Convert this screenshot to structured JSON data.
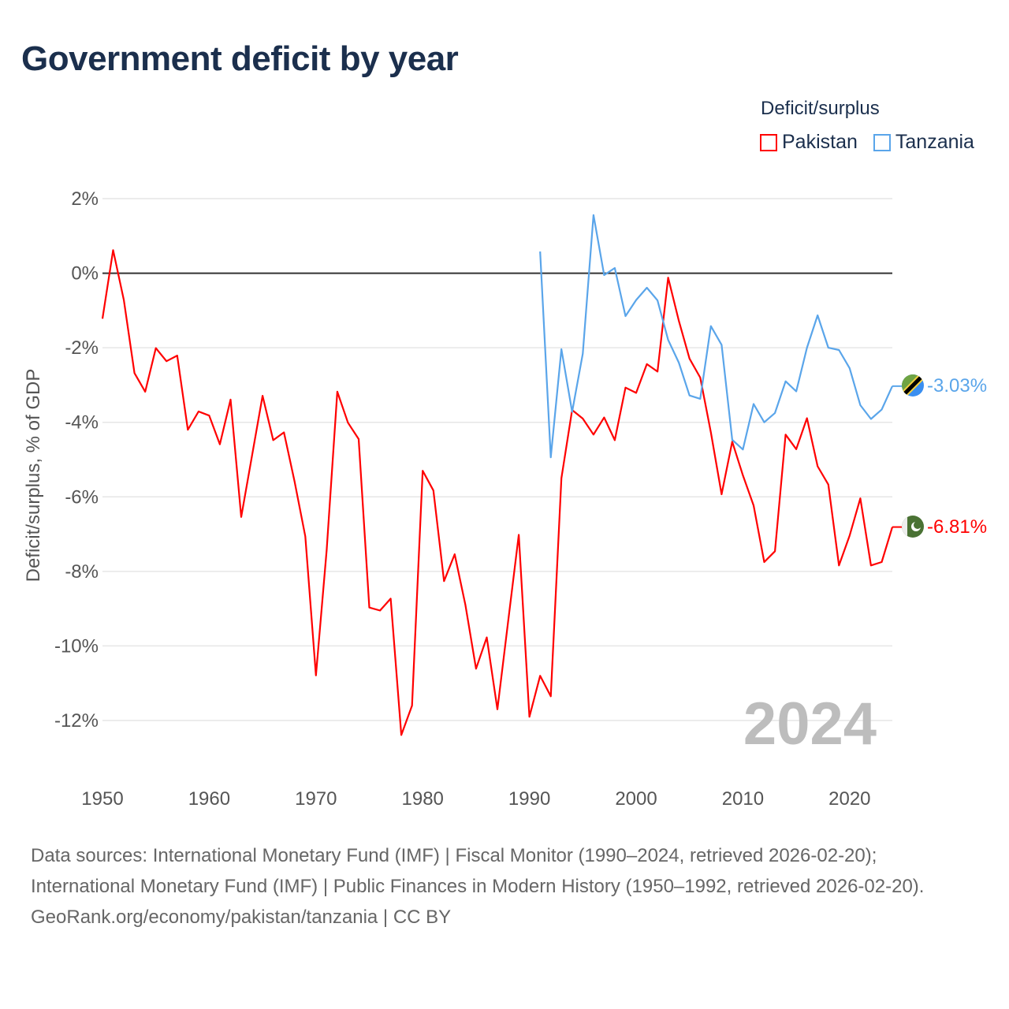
{
  "title": "Government deficit by year",
  "legend": {
    "title": "Deficit/surplus",
    "items": [
      {
        "name": "Pakistan",
        "color": "#ff0000"
      },
      {
        "name": "Tanzania",
        "color": "#5aa5ea"
      }
    ]
  },
  "year_label": "2024",
  "end_labels": {
    "pakistan": "-6.81%",
    "tanzania": "-3.03%"
  },
  "source": {
    "line1": "Data sources: International Monetary Fund (IMF) | Fiscal Monitor (1990–2024, retrieved 2026-02-20); International Monetary Fund (IMF) | Public Finances in Modern History (1950–1992, retrieved 2026-02-20).",
    "line2": "GeoRank.org/economy/pakistan/tanzania | CC BY"
  },
  "chart_data": {
    "type": "line",
    "title": "Government deficit by year",
    "xlabel": "",
    "ylabel": "Deficit/surplus, % of GDP",
    "xlim": [
      1950,
      2024
    ],
    "ylim": [
      -12,
      2
    ],
    "xticks": [
      1950,
      1960,
      1970,
      1980,
      1990,
      2000,
      2010,
      2020
    ],
    "xtick_labels": [
      "1950",
      "1960",
      "1970",
      "1980",
      "1990",
      "2000",
      "2010",
      "2020"
    ],
    "yticks": [
      2,
      0,
      -2,
      -4,
      -6,
      -8,
      -10,
      -12
    ],
    "ytick_labels": [
      "2%",
      "0%",
      "-2%",
      "-4%",
      "-6%",
      "-8%",
      "-10%",
      "-12%"
    ],
    "grid": true,
    "legend_position": "top-right",
    "series": [
      {
        "name": "Pakistan",
        "color": "#ff0000",
        "start_year": 1950,
        "values": [
          -1.22,
          0.62,
          -0.72,
          -2.68,
          -3.18,
          -2.01,
          -2.36,
          -2.21,
          -4.2,
          -3.71,
          -3.82,
          -4.59,
          -3.39,
          -6.54,
          -4.91,
          -3.29,
          -4.48,
          -4.27,
          -5.59,
          -7.06,
          -10.79,
          -7.43,
          -3.18,
          -4.01,
          -4.45,
          -8.97,
          -9.05,
          -8.73,
          -12.39,
          -11.6,
          -5.3,
          -5.83,
          -8.26,
          -7.54,
          -8.9,
          -10.61,
          -9.77,
          -11.7,
          -9.36,
          -7.02,
          -11.9,
          -10.8,
          -11.35,
          -5.5,
          -3.67,
          -3.9,
          -4.33,
          -3.87,
          -4.48,
          -3.07,
          -3.21,
          -2.44,
          -2.64,
          -0.12,
          -1.28,
          -2.29,
          -2.8,
          -4.27,
          -5.93,
          -4.52,
          -5.42,
          -6.23,
          -7.75,
          -7.46,
          -4.33,
          -4.72,
          -3.89,
          -5.18,
          -5.67,
          -7.84,
          -7.04,
          -6.04,
          -7.84,
          -7.75,
          -6.81
        ]
      },
      {
        "name": "Tanzania",
        "color": "#5aa5ea",
        "start_year": 1991,
        "values": [
          0.58,
          -4.94,
          -2.04,
          -3.72,
          -2.16,
          1.56,
          -0.05,
          0.14,
          -1.15,
          -0.72,
          -0.39,
          -0.73,
          -1.79,
          -2.4,
          -3.28,
          -3.37,
          -1.42,
          -1.92,
          -4.47,
          -4.73,
          -3.51,
          -4.0,
          -3.75,
          -2.9,
          -3.17,
          -2.0,
          -1.13,
          -2.0,
          -2.06,
          -2.55,
          -3.54,
          -3.91,
          -3.66,
          -3.03
        ]
      }
    ]
  }
}
